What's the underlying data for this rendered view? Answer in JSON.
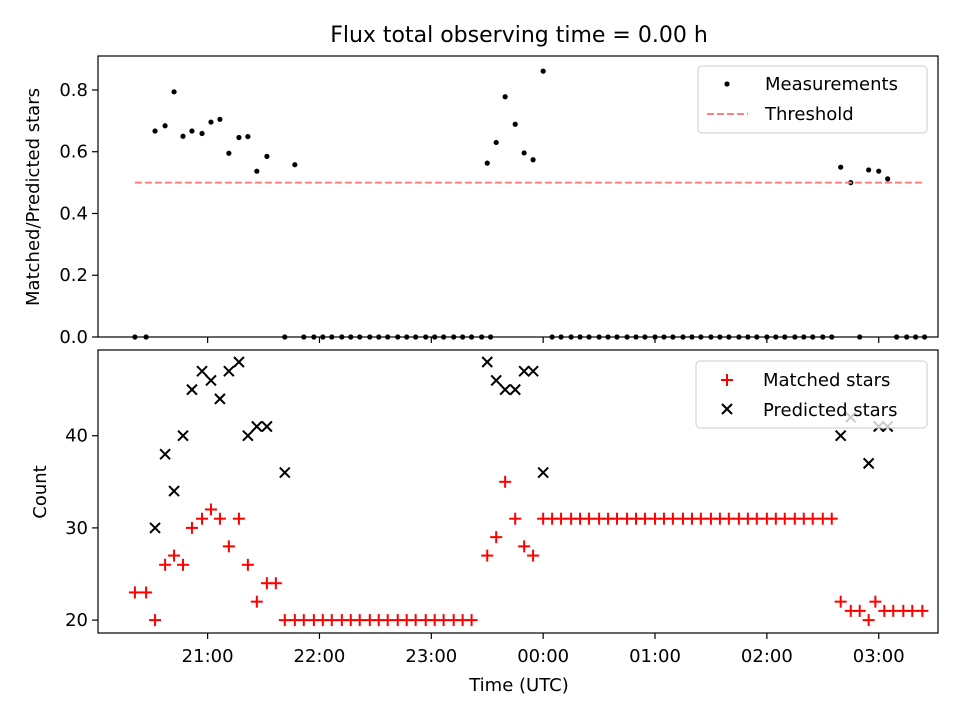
{
  "title": "Flux total observing time = 0.00 h",
  "x_tick_labels": [
    "21:00",
    "22:00",
    "23:00",
    "00:00",
    "01:00",
    "02:00",
    "03:00"
  ],
  "xlabel": "Time (UTC)",
  "chart_data": [
    {
      "type": "scatter",
      "ylabel": "Matched/Predicted stars",
      "ylim": [
        0,
        0.91
      ],
      "yticks": [
        0.0,
        0.2,
        0.4,
        0.6,
        0.8
      ],
      "ytick_labels": [
        "0.0",
        "0.2",
        "0.4",
        "0.6",
        "0.8"
      ],
      "x_unit": "hours since 20:00 UTC",
      "xlim": [
        0.02,
        7.53
      ],
      "legend_position": "top-right",
      "series": [
        {
          "name": "Measurements",
          "marker": "dot",
          "color": "#000000",
          "points": [
            [
              0.35,
              0.0
            ],
            [
              0.45,
              0.0
            ],
            [
              0.53,
              0.667
            ],
            [
              0.62,
              0.684
            ],
            [
              0.7,
              0.794
            ],
            [
              0.78,
              0.65
            ],
            [
              0.86,
              0.667
            ],
            [
              0.95,
              0.659
            ],
            [
              1.03,
              0.696
            ],
            [
              1.11,
              0.705
            ],
            [
              1.19,
              0.595
            ],
            [
              1.28,
              0.646
            ],
            [
              1.36,
              0.649
            ],
            [
              1.44,
              0.537
            ],
            [
              1.53,
              0.585
            ],
            [
              1.69,
              0.0
            ],
            [
              1.78,
              0.558
            ],
            [
              1.86,
              0.0
            ],
            [
              1.95,
              0.0
            ],
            [
              2.03,
              0.0
            ],
            [
              2.11,
              0.0
            ],
            [
              2.2,
              0.0
            ],
            [
              2.28,
              0.0
            ],
            [
              2.36,
              0.0
            ],
            [
              2.45,
              0.0
            ],
            [
              2.53,
              0.0
            ],
            [
              2.61,
              0.0
            ],
            [
              2.7,
              0.0
            ],
            [
              2.78,
              0.0
            ],
            [
              2.86,
              0.0
            ],
            [
              2.95,
              0.0
            ],
            [
              3.03,
              0.0
            ],
            [
              3.11,
              0.0
            ],
            [
              3.2,
              0.0
            ],
            [
              3.28,
              0.0
            ],
            [
              3.36,
              0.0
            ],
            [
              3.45,
              0.0
            ],
            [
              3.53,
              0.0
            ],
            [
              3.5,
              0.563
            ],
            [
              3.58,
              0.63
            ],
            [
              3.66,
              0.778
            ],
            [
              3.75,
              0.689
            ],
            [
              3.83,
              0.596
            ],
            [
              3.91,
              0.574
            ],
            [
              4.0,
              0.861
            ],
            [
              4.08,
              0.0
            ],
            [
              4.16,
              0.0
            ],
            [
              4.25,
              0.0
            ],
            [
              4.33,
              0.0
            ],
            [
              4.41,
              0.0
            ],
            [
              4.5,
              0.0
            ],
            [
              4.58,
              0.0
            ],
            [
              4.66,
              0.0
            ],
            [
              4.75,
              0.0
            ],
            [
              4.83,
              0.0
            ],
            [
              4.91,
              0.0
            ],
            [
              5.0,
              0.0
            ],
            [
              5.08,
              0.0
            ],
            [
              5.16,
              0.0
            ],
            [
              5.25,
              0.0
            ],
            [
              5.33,
              0.0
            ],
            [
              5.41,
              0.0
            ],
            [
              5.5,
              0.0
            ],
            [
              5.58,
              0.0
            ],
            [
              5.66,
              0.0
            ],
            [
              5.75,
              0.0
            ],
            [
              5.83,
              0.0
            ],
            [
              5.91,
              0.0
            ],
            [
              6.0,
              0.0
            ],
            [
              6.08,
              0.0
            ],
            [
              6.16,
              0.0
            ],
            [
              6.25,
              0.0
            ],
            [
              6.33,
              0.0
            ],
            [
              6.41,
              0.0
            ],
            [
              6.5,
              0.0
            ],
            [
              6.58,
              0.0
            ],
            [
              6.66,
              0.55
            ],
            [
              6.75,
              0.5
            ],
            [
              6.83,
              0.0
            ],
            [
              6.91,
              0.541
            ],
            [
              7.0,
              0.537
            ],
            [
              7.08,
              0.512
            ],
            [
              7.16,
              0.0
            ],
            [
              7.25,
              0.0
            ],
            [
              7.33,
              0.0
            ],
            [
              7.41,
              0.0
            ]
          ]
        },
        {
          "name": "Threshold",
          "type": "line",
          "style": "dashed",
          "color": "#ff7f7f",
          "x": [
            0.35,
            7.41
          ],
          "y": [
            0.5,
            0.5
          ]
        }
      ]
    },
    {
      "type": "scatter",
      "ylabel": "Count",
      "ylim": [
        18.6,
        49.3
      ],
      "yticks": [
        20,
        30,
        40
      ],
      "ytick_labels": [
        "20",
        "30",
        "40"
      ],
      "x_unit": "hours since 20:00 UTC",
      "xlim": [
        0.02,
        7.53
      ],
      "legend_position": "top-right",
      "series": [
        {
          "name": "Matched stars",
          "marker": "plus",
          "color": "#ff0000",
          "points": [
            [
              0.35,
              23
            ],
            [
              0.45,
              23
            ],
            [
              0.53,
              20
            ],
            [
              0.62,
              26
            ],
            [
              0.7,
              27
            ],
            [
              0.78,
              26
            ],
            [
              0.86,
              30
            ],
            [
              0.95,
              31
            ],
            [
              1.03,
              32
            ],
            [
              1.11,
              31
            ],
            [
              1.19,
              28
            ],
            [
              1.28,
              31
            ],
            [
              1.36,
              26
            ],
            [
              1.44,
              22
            ],
            [
              1.53,
              24
            ],
            [
              1.61,
              24
            ],
            [
              1.69,
              20
            ],
            [
              1.78,
              20
            ],
            [
              1.86,
              20
            ],
            [
              1.95,
              20
            ],
            [
              2.03,
              20
            ],
            [
              2.11,
              20
            ],
            [
              2.2,
              20
            ],
            [
              2.28,
              20
            ],
            [
              2.36,
              20
            ],
            [
              2.45,
              20
            ],
            [
              2.53,
              20
            ],
            [
              2.61,
              20
            ],
            [
              2.7,
              20
            ],
            [
              2.78,
              20
            ],
            [
              2.86,
              20
            ],
            [
              2.95,
              20
            ],
            [
              3.03,
              20
            ],
            [
              3.11,
              20
            ],
            [
              3.2,
              20
            ],
            [
              3.28,
              20
            ],
            [
              3.36,
              20
            ],
            [
              3.5,
              27
            ],
            [
              3.58,
              29
            ],
            [
              3.66,
              35
            ],
            [
              3.75,
              31
            ],
            [
              3.83,
              28
            ],
            [
              3.91,
              27
            ],
            [
              4.0,
              31
            ],
            [
              4.08,
              31
            ],
            [
              4.16,
              31
            ],
            [
              4.25,
              31
            ],
            [
              4.33,
              31
            ],
            [
              4.41,
              31
            ],
            [
              4.5,
              31
            ],
            [
              4.58,
              31
            ],
            [
              4.66,
              31
            ],
            [
              4.75,
              31
            ],
            [
              4.83,
              31
            ],
            [
              4.91,
              31
            ],
            [
              5.0,
              31
            ],
            [
              5.08,
              31
            ],
            [
              5.16,
              31
            ],
            [
              5.25,
              31
            ],
            [
              5.33,
              31
            ],
            [
              5.41,
              31
            ],
            [
              5.5,
              31
            ],
            [
              5.58,
              31
            ],
            [
              5.66,
              31
            ],
            [
              5.75,
              31
            ],
            [
              5.83,
              31
            ],
            [
              5.91,
              31
            ],
            [
              6.0,
              31
            ],
            [
              6.08,
              31
            ],
            [
              6.16,
              31
            ],
            [
              6.25,
              31
            ],
            [
              6.33,
              31
            ],
            [
              6.41,
              31
            ],
            [
              6.5,
              31
            ],
            [
              6.58,
              31
            ],
            [
              6.66,
              22
            ],
            [
              6.75,
              21
            ],
            [
              6.83,
              21
            ],
            [
              6.91,
              20
            ],
            [
              6.97,
              22
            ],
            [
              7.05,
              21
            ],
            [
              7.13,
              21
            ],
            [
              7.22,
              21
            ],
            [
              7.3,
              21
            ],
            [
              7.39,
              21
            ]
          ]
        },
        {
          "name": "Predicted stars",
          "marker": "x",
          "color": "#000000",
          "points": [
            [
              0.53,
              30
            ],
            [
              0.62,
              38
            ],
            [
              0.7,
              34
            ],
            [
              0.78,
              40
            ],
            [
              0.86,
              45
            ],
            [
              0.95,
              47
            ],
            [
              1.03,
              46
            ],
            [
              1.11,
              44
            ],
            [
              1.19,
              47
            ],
            [
              1.28,
              48
            ],
            [
              1.36,
              40
            ],
            [
              1.44,
              41
            ],
            [
              1.53,
              41
            ],
            [
              1.69,
              36
            ],
            [
              3.5,
              48
            ],
            [
              3.58,
              46
            ],
            [
              3.66,
              45
            ],
            [
              3.75,
              45
            ],
            [
              3.83,
              47
            ],
            [
              3.91,
              47
            ],
            [
              4.0,
              36
            ],
            [
              6.66,
              40
            ],
            [
              6.75,
              42
            ],
            [
              6.91,
              37
            ],
            [
              7.0,
              41
            ],
            [
              7.08,
              41
            ]
          ]
        }
      ]
    }
  ]
}
